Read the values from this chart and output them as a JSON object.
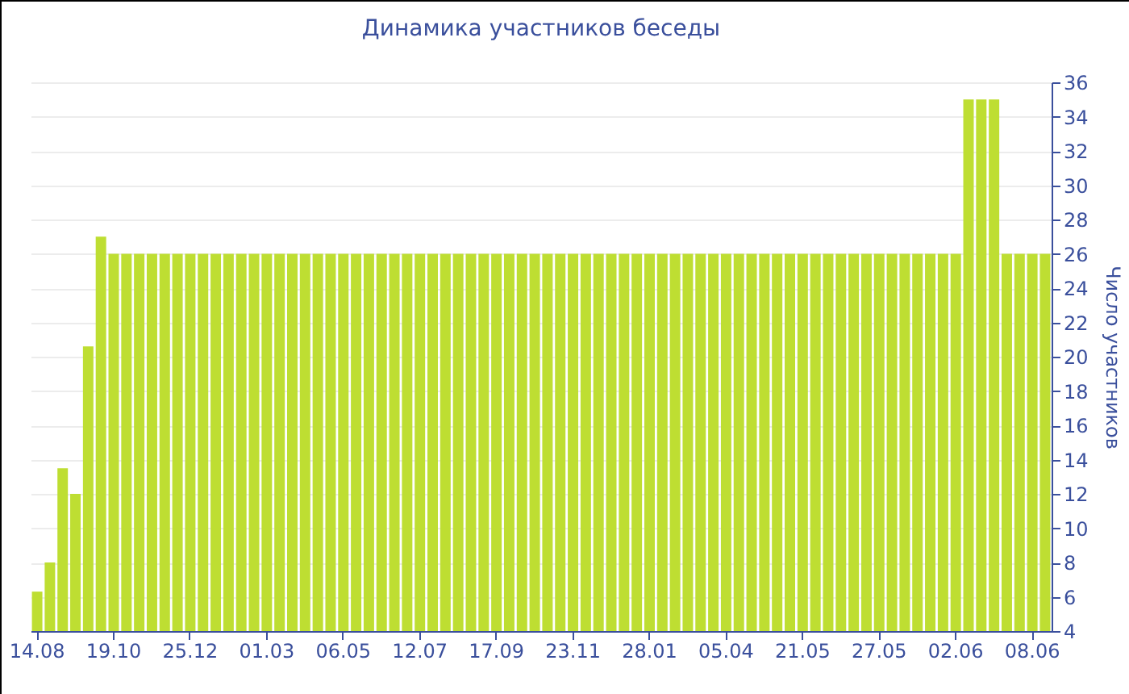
{
  "chart_data": {
    "type": "bar",
    "title": "Динамика участников беседы",
    "ylabel": "Число участников",
    "categories": [
      "14.08",
      null,
      null,
      null,
      null,
      null,
      "19.10",
      null,
      null,
      null,
      null,
      null,
      "25.12",
      null,
      null,
      null,
      null,
      null,
      "01.03",
      null,
      null,
      null,
      null,
      null,
      "06.05",
      null,
      null,
      null,
      null,
      null,
      "12.07",
      null,
      null,
      null,
      null,
      null,
      "17.09",
      null,
      null,
      null,
      null,
      null,
      "23.11",
      null,
      null,
      null,
      null,
      null,
      "28.01",
      null,
      null,
      null,
      null,
      null,
      "05.04",
      null,
      null,
      null,
      null,
      null,
      "21.05",
      null,
      null,
      null,
      null,
      null,
      "27.05",
      null,
      null,
      null,
      null,
      null,
      "02.06",
      null,
      null,
      null,
      null,
      null,
      "08.06",
      null
    ],
    "values": [
      6.3,
      8,
      13.5,
      12,
      20.6,
      27,
      26,
      26,
      26,
      26,
      26,
      26,
      26,
      26,
      26,
      26,
      26,
      26,
      26,
      26,
      26,
      26,
      26,
      26,
      26,
      26,
      26,
      26,
      26,
      26,
      26,
      26,
      26,
      26,
      26,
      26,
      26,
      26,
      26,
      26,
      26,
      26,
      26,
      26,
      26,
      26,
      26,
      26,
      26,
      26,
      26,
      26,
      26,
      26,
      26,
      26,
      26,
      26,
      26,
      26,
      26,
      26,
      26,
      26,
      26,
      26,
      26,
      26,
      26,
      26,
      26,
      26,
      26,
      35,
      35,
      35,
      26,
      26,
      26,
      26
    ],
    "color": "#bede32",
    "ylim": [
      4,
      36
    ],
    "yticks": [
      4,
      6,
      8,
      10,
      12,
      14,
      16,
      18,
      20,
      22,
      24,
      26,
      28,
      30,
      32,
      34,
      36
    ],
    "grid": "y"
  }
}
